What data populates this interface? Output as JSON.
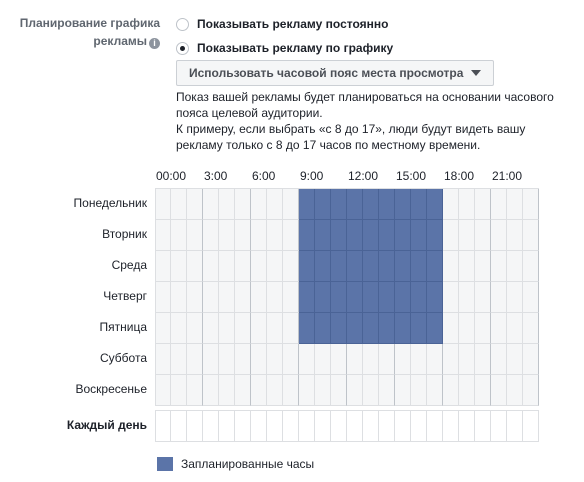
{
  "schedule": {
    "section_label_line1": "Планирование графика",
    "section_label_line2": "рекламы",
    "info_icon_glyph": "i",
    "options": [
      {
        "label": "Показывать рекламу постоянно",
        "selected": false
      },
      {
        "label": "Показывать рекламу по графику",
        "selected": true
      }
    ],
    "timezone_select": "Использовать часовой пояс места просмотра",
    "description_line1": "Показ вашей рекламы будет планироваться на основании часового пояса целевой аудитории.",
    "description_line2": "К примеру, если выбрать «с 8 до 17», люди будут видеть вашу рекламу только с 8 до 17 часов по местному времени."
  },
  "grid": {
    "time_labels": [
      "00:00",
      "3:00",
      "6:00",
      "9:00",
      "12:00",
      "15:00",
      "18:00",
      "21:00"
    ],
    "days": [
      {
        "label": "Понедельник",
        "scheduled_hours": [
          9,
          10,
          11,
          12,
          13,
          14,
          15,
          16,
          17
        ]
      },
      {
        "label": "Вторник",
        "scheduled_hours": [
          9,
          10,
          11,
          12,
          13,
          14,
          15,
          16,
          17
        ]
      },
      {
        "label": "Среда",
        "scheduled_hours": [
          9,
          10,
          11,
          12,
          13,
          14,
          15,
          16,
          17
        ]
      },
      {
        "label": "Четверг",
        "scheduled_hours": [
          9,
          10,
          11,
          12,
          13,
          14,
          15,
          16,
          17
        ]
      },
      {
        "label": "Пятница",
        "scheduled_hours": [
          9,
          10,
          11,
          12,
          13,
          14,
          15,
          16,
          17
        ]
      },
      {
        "label": "Суббота",
        "scheduled_hours": []
      },
      {
        "label": "Воскресенье",
        "scheduled_hours": []
      }
    ],
    "every_day_label": "Каждый день",
    "hours_per_day": 24
  },
  "legend": {
    "label": "Запланированные часы"
  },
  "colors": {
    "scheduled": "#5b74a8",
    "empty": "#f5f6f7",
    "border": "#dddfe2",
    "major_border": "#bec3c9"
  }
}
